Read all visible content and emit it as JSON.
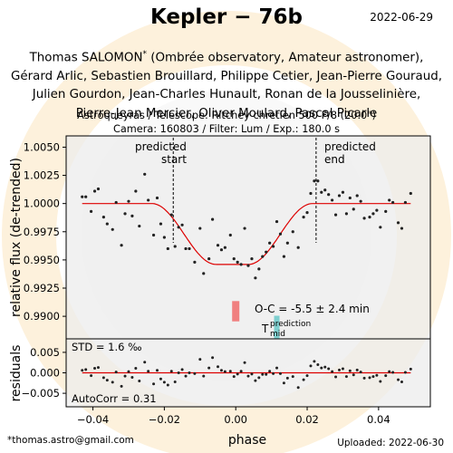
{
  "header": {
    "title": "Kepler − 76b",
    "date": "2022-06-29"
  },
  "credits": {
    "lead_author": "Thomas SALOMON",
    "lead_author_mark": "*",
    "lead_affiliation": "(Ombrée observatory, Amateur astronomer),",
    "coauthor_lines": [
      "Gérard Arlic, Sebastien Brouillard, Philippe Cetier, Jean-Pierre Gouraud,",
      "Julien Gourdon, Jean-Charles Hunault, Ronan  de la Jousselinière,",
      "Pierre-Jean Mercier, Oliver Moulard, Pascal Picarle"
    ],
    "observation_line_1": "Astroqueyras / Telescope: Ritchey chretien 500 F/8 (20.0\")",
    "observation_line_2": "Camera: 160803 / Filter: Lum / Exp.: 180.0 s"
  },
  "footer": {
    "email": "*thomas.astro@gmail.com",
    "uploaded": "Uploaded: 2022-06-30"
  },
  "chart_data": [
    {
      "type": "scatter",
      "panel": "light curve",
      "ylabel": "relative flux (de-trended)",
      "xlim": [
        -0.0475,
        0.0545
      ],
      "ylim": [
        0.988,
        1.006
      ],
      "yticks": [
        "1.0050",
        "1.0025",
        "1.0000",
        "0.9975",
        "0.9950",
        "0.9925",
        "0.9900"
      ],
      "ytick_values": [
        1.005,
        1.0025,
        1.0,
        0.9975,
        0.995,
        0.9925,
        0.99
      ],
      "colors": {
        "points": "#222222",
        "model": "#dd0000",
        "oc_bar": "#f08080",
        "prediction_bar": "#7ecfcf",
        "background": "#ececec"
      },
      "predicted_start": {
        "x": -0.0175,
        "label_line1": "predicted",
        "label_line2": "start"
      },
      "predicted_end": {
        "x": 0.0225,
        "label_line1": "predicted",
        "label_line2": "end"
      },
      "oc_label": "O-C = -5.5 ± 2.4 min",
      "oc_bar": {
        "x": 0.0,
        "y_range": [
          0.98955,
          0.99135
        ]
      },
      "prediction_label_T": "T",
      "prediction_label_sup": "prediction",
      "prediction_label_sub": "mid",
      "prediction_bar": {
        "x": 0.0115,
        "y_range": [
          0.9883,
          0.99005
        ]
      },
      "model": {
        "baseline": 1.0,
        "depth": 0.0054,
        "t_ingress_start": -0.0235,
        "t_full": -0.0055,
        "t_egress_start": 0.0035,
        "t_egress_end": 0.0215
      },
      "x": [
        -0.043,
        -0.042,
        -0.0405,
        -0.0395,
        -0.0385,
        -0.037,
        -0.036,
        -0.0345,
        -0.0335,
        -0.032,
        -0.031,
        -0.03,
        -0.029,
        -0.028,
        -0.027,
        -0.0255,
        -0.0245,
        -0.023,
        -0.022,
        -0.021,
        -0.02,
        -0.019,
        -0.018,
        -0.017,
        -0.016,
        -0.015,
        -0.014,
        -0.013,
        -0.0115,
        -0.01,
        -0.009,
        -0.0075,
        -0.0065,
        -0.005,
        -0.004,
        -0.003,
        -0.0015,
        -0.0005,
        0.0005,
        0.0015,
        0.0025,
        0.0035,
        0.0045,
        0.0055,
        0.0065,
        0.0075,
        0.0085,
        0.0095,
        0.0105,
        0.0115,
        0.0125,
        0.0135,
        0.0145,
        0.016,
        0.0175,
        0.019,
        0.02,
        0.021,
        0.022,
        0.023,
        0.024,
        0.025,
        0.026,
        0.027,
        0.028,
        0.029,
        0.03,
        0.031,
        0.032,
        0.033,
        0.034,
        0.035,
        0.036,
        0.0375,
        0.0385,
        0.0395,
        0.0405,
        0.042,
        0.043,
        0.044,
        0.0455,
        0.0465,
        0.0475,
        0.049
      ],
      "y": [
        1.0006,
        1.0006,
        0.9993,
        1.0011,
        1.0013,
        0.9988,
        0.9982,
        0.9977,
        1.0001,
        0.9963,
        0.9991,
        1.0002,
        0.9989,
        1.0011,
        0.998,
        1.0026,
        1.0003,
        0.9972,
        1.0005,
        0.9982,
        0.997,
        0.996,
        0.999,
        0.9962,
        0.9979,
        0.9981,
        0.996,
        0.996,
        0.9948,
        0.9978,
        0.9938,
        0.9951,
        0.9986,
        0.9963,
        0.9959,
        0.9961,
        0.9972,
        0.9951,
        0.9948,
        0.9946,
        0.9978,
        0.9945,
        0.9951,
        0.9934,
        0.9942,
        0.9953,
        0.9957,
        0.9965,
        0.9962,
        0.9984,
        0.9973,
        0.9953,
        0.9965,
        0.9975,
        0.9961,
        0.9988,
        0.9992,
        1.0009,
        1.002,
        1.002,
        1.001,
        1.0012,
        1.0008,
        1.0003,
        0.999,
        1.0007,
        1.001,
        0.9991,
        1.0005,
        0.9995,
        1.0007,
        1.0002,
        0.9987,
        0.9988,
        0.9991,
        0.9994,
        0.9979,
        0.9993,
        1.0003,
        1.0001,
        0.9983,
        0.9978,
        1.0001,
        1.0009
      ]
    },
    {
      "type": "scatter",
      "panel": "residuals",
      "xlabel": "phase",
      "ylabel": "residuals",
      "xlim": [
        -0.0475,
        0.0545
      ],
      "ylim": [
        -0.0083,
        0.0083
      ],
      "yticks": [
        "0.005",
        "0.000",
        "−0.005"
      ],
      "ytick_values": [
        0.005,
        0.0,
        -0.005
      ],
      "xticks": [
        "−0.04",
        "−0.02",
        "0.00",
        "0.02",
        "0.04"
      ],
      "xtick_values": [
        -0.04,
        -0.02,
        0.0,
        0.02,
        0.04
      ],
      "std_label": "STD = 1.6 ‰",
      "autocorr_label": "AutoCorr = 0.31",
      "x": [
        -0.043,
        -0.042,
        -0.0405,
        -0.0395,
        -0.0385,
        -0.037,
        -0.036,
        -0.0345,
        -0.0335,
        -0.032,
        -0.031,
        -0.03,
        -0.029,
        -0.028,
        -0.027,
        -0.0255,
        -0.0245,
        -0.023,
        -0.022,
        -0.021,
        -0.02,
        -0.019,
        -0.018,
        -0.017,
        -0.016,
        -0.015,
        -0.014,
        -0.013,
        -0.0115,
        -0.01,
        -0.009,
        -0.0075,
        -0.0065,
        -0.005,
        -0.004,
        -0.003,
        -0.0015,
        -0.0005,
        0.0005,
        0.0015,
        0.0025,
        0.0035,
        0.0045,
        0.0055,
        0.0065,
        0.0075,
        0.0085,
        0.0095,
        0.0105,
        0.0115,
        0.0125,
        0.0135,
        0.0145,
        0.016,
        0.0175,
        0.019,
        0.02,
        0.021,
        0.022,
        0.023,
        0.024,
        0.025,
        0.026,
        0.027,
        0.028,
        0.029,
        0.03,
        0.031,
        0.032,
        0.033,
        0.034,
        0.035,
        0.036,
        0.0375,
        0.0385,
        0.0395,
        0.0405,
        0.042,
        0.043,
        0.044,
        0.0455,
        0.0465,
        0.0475,
        0.049
      ],
      "y": [
        0.0006,
        0.0008,
        -0.0007,
        0.0011,
        0.0013,
        -0.0012,
        -0.0018,
        -0.0023,
        0.0002,
        -0.0033,
        -0.0008,
        0.0003,
        -0.0011,
        0.0011,
        -0.002,
        0.0026,
        0.0004,
        -0.0027,
        0.0006,
        -0.0015,
        -0.0023,
        -0.003,
        0.0004,
        -0.0022,
        0.0,
        0.0008,
        -0.0008,
        0.0,
        -0.0002,
        0.0033,
        -0.0008,
        0.0012,
        0.0037,
        0.0015,
        0.0006,
        0.0003,
        0.0004,
        -0.0009,
        -0.0003,
        0.0004,
        0.0025,
        -0.0008,
        -0.0003,
        -0.0019,
        -0.0012,
        -0.0004,
        -0.0004,
        0.0004,
        -0.0002,
        0.0012,
        -0.0002,
        -0.0025,
        -0.0013,
        -0.0009,
        -0.0036,
        -0.0017,
        -0.0007,
        0.0017,
        0.0028,
        0.002,
        0.0012,
        0.0014,
        0.001,
        0.0003,
        -0.001,
        0.0007,
        0.001,
        -0.0009,
        0.0005,
        -0.0005,
        0.0007,
        0.0002,
        -0.0013,
        -0.0012,
        -0.0009,
        -0.0006,
        -0.0021,
        -0.0007,
        0.0003,
        0.0001,
        -0.0017,
        -0.0022,
        0.0001,
        0.0009
      ]
    }
  ]
}
